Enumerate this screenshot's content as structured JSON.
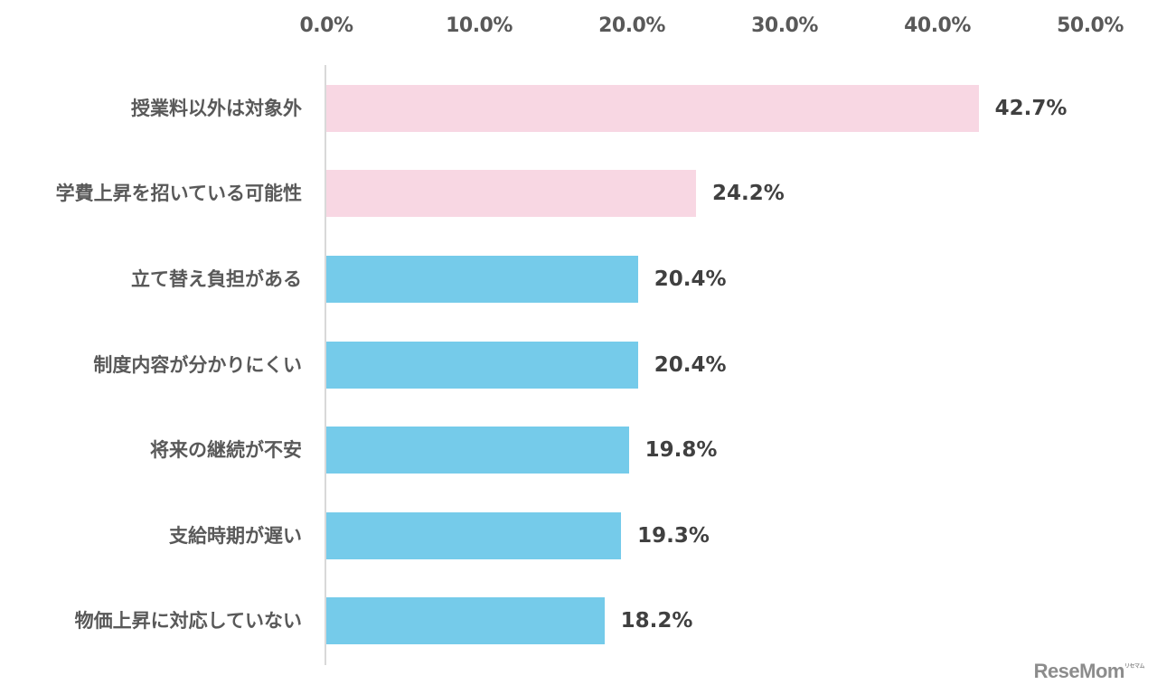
{
  "chart_data": {
    "type": "bar",
    "orientation": "horizontal",
    "title": "",
    "xlabel": "",
    "ylabel": "",
    "xlim": [
      0,
      50
    ],
    "x_ticks": [
      "0.0%",
      "10.0%",
      "20.0%",
      "30.0%",
      "40.0%",
      "50.0%"
    ],
    "axis_position": "top",
    "grid": false,
    "legend": null,
    "categories": [
      "授業料以外は対象外",
      "学費上昇を招いている可能性",
      "立て替え負担がある",
      "制度内容が分かりにくい",
      "将来の継続が不安",
      "支給時期が遅い",
      "物価上昇に対応していない"
    ],
    "values": [
      42.7,
      24.2,
      20.4,
      20.4,
      19.8,
      19.3,
      18.2
    ],
    "value_labels": [
      "42.7%",
      "24.2%",
      "20.4%",
      "20.4%",
      "19.8%",
      "19.3%",
      "18.2%"
    ],
    "bar_colors": [
      "#f8d7e3",
      "#f8d7e3",
      "#75cbea",
      "#75cbea",
      "#75cbea",
      "#75cbea",
      "#75cbea"
    ]
  },
  "colors": {
    "highlight": "#f8d7e3",
    "normal": "#75cbea",
    "axis_text": "#595959",
    "value_text": "#404040",
    "axis_line": "#d9d9d9"
  },
  "watermark": {
    "text": "ReseMom",
    "superscript": "リセマム"
  }
}
